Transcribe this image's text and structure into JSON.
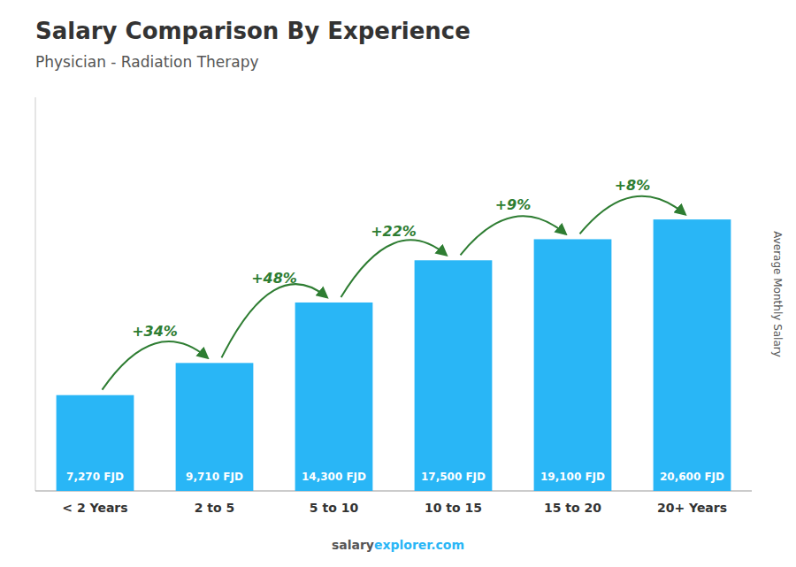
{
  "chart_data": {
    "type": "bar",
    "title": "Salary Comparison By Experience",
    "subtitle": "Physician - Radiation Therapy",
    "y_label": "Average Monthly Salary",
    "categories": [
      "< 2 Years",
      "2 to 5",
      "5 to 10",
      "10 to 15",
      "15 to 20",
      "20+ Years"
    ],
    "values": [
      7270,
      9710,
      14300,
      17500,
      19100,
      20600
    ],
    "value_labels": [
      "7,270 FJD",
      "9,710 FJD",
      "14,300 FJD",
      "17,500 FJD",
      "19,100 FJD",
      "20,600 FJD"
    ],
    "data_labels": true,
    "annotations": [
      "+34%",
      "+48%",
      "+22%",
      "+9%",
      "+8%"
    ],
    "footer": [
      "salary",
      "explorer.com"
    ],
    "color": "#29b6f6",
    "ylim": [
      0,
      29870
    ],
    "tick_labels": "x",
    "grid": false
  }
}
